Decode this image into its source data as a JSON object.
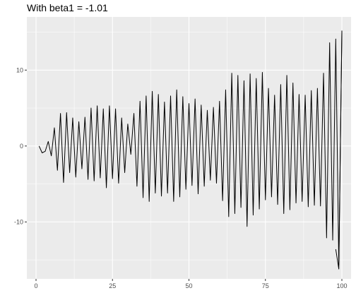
{
  "chart_data": {
    "type": "line",
    "title": "With beta1 = -1.01",
    "xlabel": "",
    "ylabel": "",
    "xlim": [
      -3,
      103
    ],
    "ylim": [
      -17.5,
      17
    ],
    "x_ticks": [
      0,
      25,
      50,
      75,
      100
    ],
    "y_ticks": [
      -10,
      0,
      10
    ],
    "x_tick_labels": [
      "0",
      "25",
      "50",
      "75",
      "100"
    ],
    "y_tick_labels": [
      "-10",
      "0",
      "10"
    ],
    "grid": true,
    "legend": "none",
    "colors": {
      "panel": "#ebebeb",
      "grid": "#ffffff",
      "line": "#000000"
    },
    "series": [
      {
        "x": [
          1,
          2,
          3,
          4,
          5,
          6,
          7,
          8,
          9,
          10,
          11,
          12,
          13,
          14,
          15,
          16,
          17,
          18,
          19,
          20,
          21,
          22,
          23,
          24,
          25,
          26,
          27,
          28,
          29,
          30,
          31,
          32,
          33,
          34,
          35,
          36,
          37,
          38,
          39,
          40,
          41,
          42,
          43,
          44,
          45,
          46,
          47,
          48,
          49,
          50,
          51,
          52,
          53,
          54,
          55,
          56,
          57,
          58,
          59,
          60,
          61,
          62,
          63,
          64,
          65,
          66,
          67,
          68,
          69,
          70,
          71,
          72,
          73,
          74,
          75,
          76,
          77,
          78,
          79,
          80,
          81,
          82,
          83,
          84,
          85,
          86,
          87,
          88,
          89,
          90,
          91,
          92,
          93,
          94,
          95,
          96,
          97,
          98,
          99,
          100
        ],
        "values": [
          0,
          -0.9,
          -0.7,
          0.6,
          -1.3,
          2.4,
          -3.2,
          4.3,
          -4.8,
          4.4,
          -3.5,
          3.7,
          -4.1,
          3.2,
          -3.0,
          3.8,
          -4.4,
          5.0,
          -4.6,
          5.3,
          -4.2,
          4.9,
          -5.5,
          5.3,
          -4.3,
          4.9,
          -4.9,
          3.7,
          -3.5,
          2.9,
          -1.1,
          4.3,
          -5.3,
          5.9,
          -6.8,
          6.6,
          -7.3,
          7.2,
          -6.2,
          6.8,
          -6.6,
          5.8,
          -6.2,
          6.6,
          -7.3,
          7.4,
          -6.7,
          6.5,
          -5.7,
          5.6,
          -5.2,
          6.2,
          -6.3,
          5.4,
          -5.3,
          4.7,
          -4.5,
          5.1,
          -4.9,
          5.9,
          -7.2,
          7.4,
          -9.3,
          9.6,
          -8.9,
          9.3,
          -8.1,
          8.6,
          -10.6,
          9.5,
          -9.1,
          8.9,
          -8.3,
          9.7,
          -7.1,
          7.6,
          -6.7,
          6.7,
          -7.7,
          8.1,
          -8.9,
          9.3,
          -8.4,
          8.3,
          -7.5,
          6.8,
          -7.3,
          6.7,
          -8.0,
          7.3,
          -7.8,
          7.6,
          -7.9,
          9.6,
          -12.1,
          13.6,
          -12.4,
          14.1,
          -15.7,
          15.2
        ]
      },
      {
        "x": [
          98,
          99,
          100
        ],
        "values": [
          -13.6,
          -16.2,
          15.0
        ]
      }
    ]
  }
}
